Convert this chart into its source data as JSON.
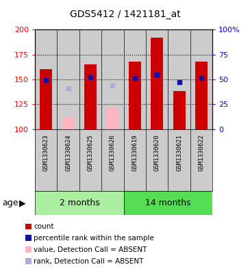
{
  "title": "GDS5412 / 1421181_at",
  "samples": [
    "GSM1330623",
    "GSM1330624",
    "GSM1330625",
    "GSM1330626",
    "GSM1330619",
    "GSM1330620",
    "GSM1330621",
    "GSM1330622"
  ],
  "groups": [
    {
      "label": "2 months",
      "color": "#90EE90",
      "start": 0,
      "end": 3
    },
    {
      "label": "14 months",
      "color": "#66DD66",
      "start": 4,
      "end": 7
    }
  ],
  "red_bars": [
    160,
    null,
    165,
    null,
    168,
    192,
    138,
    168
  ],
  "pink_bars": [
    null,
    112,
    null,
    122,
    null,
    null,
    null,
    null
  ],
  "blue_squares_left": [
    149,
    null,
    152,
    null,
    151,
    155,
    147,
    151
  ],
  "lavender_squares_left": [
    null,
    141,
    null,
    144,
    null,
    null,
    null,
    null
  ],
  "ylim_left": [
    100,
    200
  ],
  "ylim_right": [
    0,
    100
  ],
  "yticks_left": [
    100,
    125,
    150,
    175,
    200
  ],
  "yticks_right": [
    0,
    25,
    50,
    75,
    100
  ],
  "ytick_labels_right": [
    "0",
    "25",
    "50",
    "75",
    "100%"
  ],
  "red_color": "#CC0000",
  "pink_color": "#FFB6C1",
  "blue_color": "#1111AA",
  "lavender_color": "#AAAADD",
  "col_bg": "#CCCCCC",
  "group1_color": "#AAEEA0",
  "group2_color": "#55DD55"
}
